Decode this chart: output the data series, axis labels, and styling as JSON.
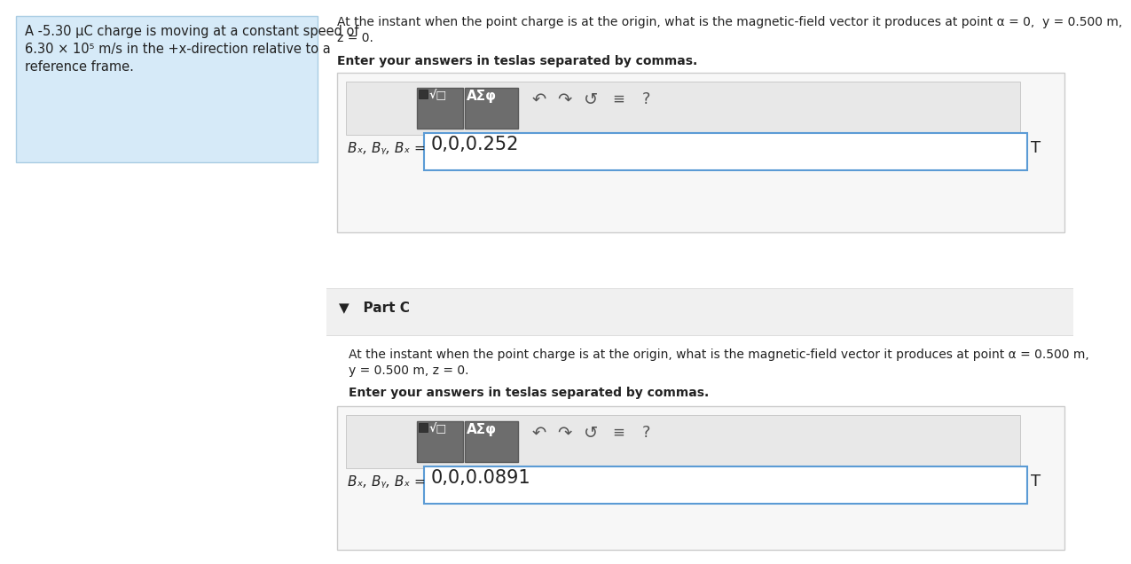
{
  "bg_color": "#ffffff",
  "left_panel_bg": "#d6eaf8",
  "left_panel_border": "#a9cce3",
  "left_panel_text_line1": "A -5.30 μC charge is moving at a constant speed of",
  "left_panel_text_line2": "6.30 × 10⁵ m/s in the +x-direction relative to a",
  "left_panel_text_line3": "reference frame.",
  "partB_q_line1": "At the instant when the point charge is at the origin, what is the magnetic-field vector it produces at point α = 0,  y = 0.500 m,",
  "partB_q_line2": "z = 0.",
  "partB_instruction": "Enter your answers in teslas separated by commas.",
  "partB_label": "Bₓ, Bᵧ, Bₓ =",
  "partB_answer": "0,0,0.252",
  "partB_unit": "T",
  "partC_header": "▼   Part C",
  "partC_q_line1": "At the instant when the point charge is at the origin, what is the magnetic-field vector it produces at point α = 0.500 m,",
  "partC_q_line2": "y = 0.500 m, z = 0.",
  "partC_instruction": "Enter your answers in teslas separated by commas.",
  "partC_label": "Bₓ, Bᵧ, Bₓ =",
  "partC_answer": "0,0,0.0891",
  "partC_unit": "T",
  "text_dark": "#222222",
  "text_mid": "#444444",
  "border_light": "#cccccc",
  "border_blue": "#5b9bd5",
  "toolbar_bg": "#e8e8e8",
  "toolbar_border": "#bbbbbb",
  "btn_dark": "#6d6d6d",
  "btn_darker": "#5a5a5a",
  "partc_section_bg": "#f0f0f0",
  "input_bg": "#ffffff",
  "outer_box_bg": "#f7f7f7"
}
